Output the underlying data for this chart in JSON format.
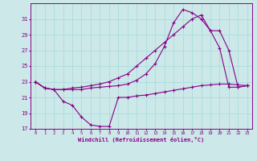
{
  "xlabel": "Windchill (Refroidissement éolien,°C)",
  "bg_color": "#cce8e8",
  "line_color": "#880088",
  "grid_color": "#aadddd",
  "xlim": [
    -0.5,
    23.5
  ],
  "ylim": [
    17,
    33
  ],
  "xticks": [
    0,
    1,
    2,
    3,
    4,
    5,
    6,
    7,
    8,
    9,
    10,
    11,
    12,
    13,
    14,
    15,
    16,
    17,
    18,
    19,
    20,
    21,
    22,
    23
  ],
  "yticks": [
    17,
    19,
    21,
    23,
    25,
    27,
    29,
    31
  ],
  "series1_x": [
    0,
    1,
    2,
    3,
    4,
    5,
    6,
    7,
    8,
    9,
    10,
    11,
    12,
    13,
    14,
    15,
    16,
    17,
    18,
    19,
    20,
    21,
    22,
    23
  ],
  "series1_y": [
    23.0,
    22.2,
    22.0,
    20.5,
    20.0,
    18.5,
    17.5,
    17.3,
    17.3,
    21.0,
    21.0,
    21.2,
    21.3,
    21.5,
    21.7,
    21.9,
    22.1,
    22.3,
    22.5,
    22.6,
    22.7,
    22.7,
    22.6,
    22.5
  ],
  "series2_x": [
    0,
    1,
    2,
    3,
    4,
    5,
    6,
    7,
    8,
    9,
    10,
    11,
    12,
    13,
    14,
    15,
    16,
    17,
    18,
    19,
    20,
    21,
    22,
    23
  ],
  "series2_y": [
    23.0,
    22.2,
    22.0,
    22.0,
    22.0,
    22.0,
    22.2,
    22.3,
    22.4,
    22.5,
    22.7,
    23.2,
    24.0,
    25.3,
    27.5,
    30.5,
    32.2,
    31.8,
    31.0,
    29.5,
    27.3,
    22.3,
    22.3,
    22.5
  ],
  "series3_x": [
    0,
    1,
    2,
    3,
    4,
    5,
    6,
    7,
    8,
    9,
    10,
    11,
    12,
    13,
    14,
    15,
    16,
    17,
    18,
    19,
    20,
    21,
    22,
    23
  ],
  "series3_y": [
    23.0,
    22.2,
    22.0,
    22.0,
    22.2,
    22.3,
    22.5,
    22.7,
    23.0,
    23.5,
    24.0,
    25.0,
    26.0,
    27.0,
    28.0,
    29.0,
    30.0,
    31.0,
    31.5,
    29.5,
    29.5,
    27.0,
    22.3,
    22.5
  ]
}
